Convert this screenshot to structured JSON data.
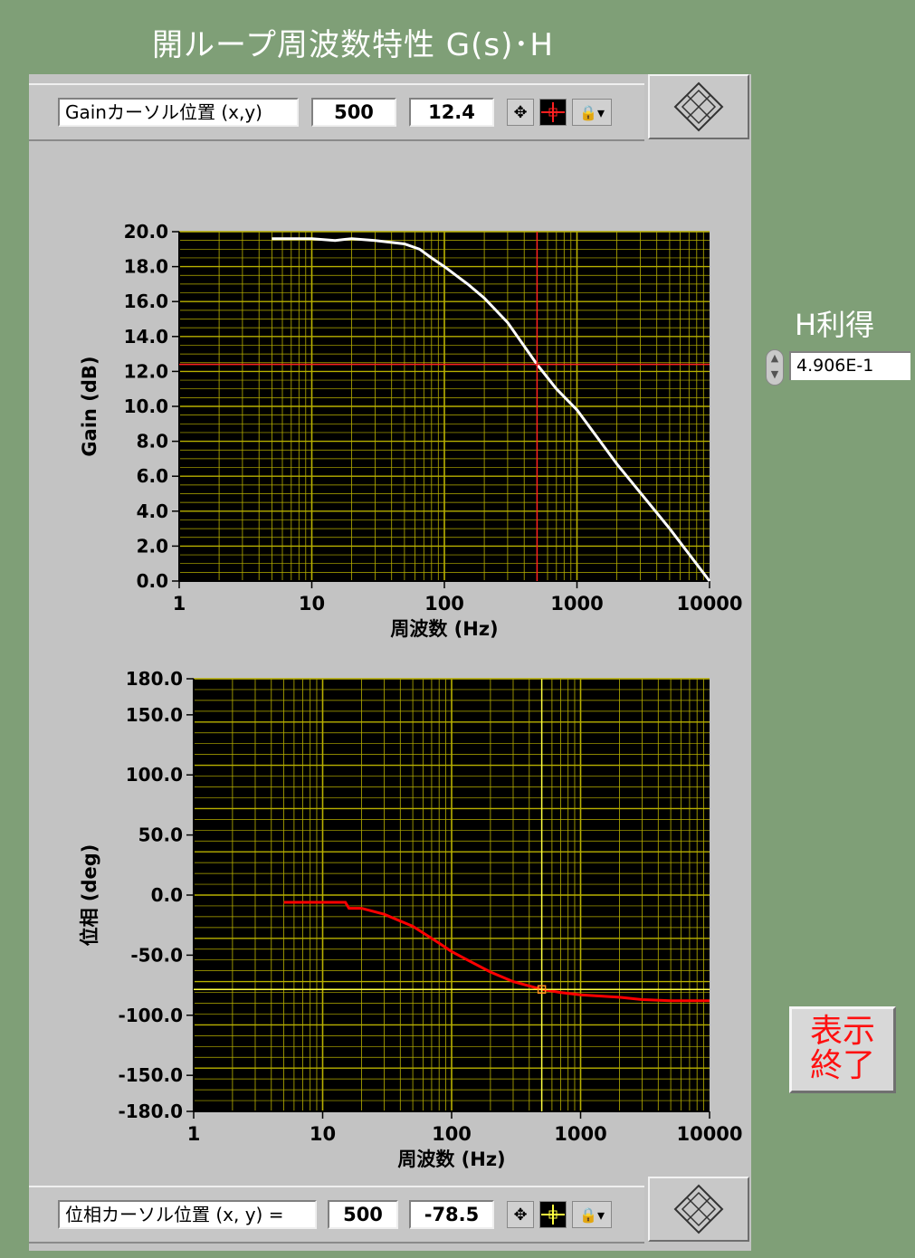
{
  "title": "開ループ周波数特性 G(s)･H",
  "gain_cursor": {
    "label": "Gainカーソル位置 (x,y)",
    "x": "500",
    "y": "12.4"
  },
  "phase_cursor": {
    "label": "位相カーソル位置 (x, y) =",
    "x": "500",
    "y": "-78.5"
  },
  "h_gain": {
    "label": "H利得",
    "value": "4.906E-1"
  },
  "end_button": {
    "line1": "表示",
    "line2": "終了"
  },
  "colors": {
    "plot_bg": "#000000",
    "grid": "#b8b000",
    "gain_trace": "#ffffff",
    "phase_trace": "#ff0000",
    "gain_cursor": "#ff2020",
    "phase_cursor": "#ffff40"
  },
  "chart_data": [
    {
      "type": "line",
      "xscale": "log",
      "xlabel": "周波数 (Hz)",
      "ylabel": "Gain (dB)",
      "xlim": [
        1,
        10000
      ],
      "ylim": [
        0,
        20
      ],
      "x_ticks": [
        "1",
        "10",
        "100",
        "1000",
        "10000"
      ],
      "y_ticks": [
        "20.0",
        "18.0",
        "16.0",
        "14.0",
        "12.0",
        "10.0",
        "8.0",
        "6.0",
        "4.0",
        "2.0",
        "0.0"
      ],
      "cursor": {
        "x": 500,
        "y": 12.4
      },
      "x": [
        5,
        10,
        15,
        20,
        30,
        50,
        65,
        80,
        100,
        150,
        200,
        300,
        500,
        700,
        1000,
        2000,
        5000,
        10000
      ],
      "y": [
        19.6,
        19.6,
        19.5,
        19.6,
        19.5,
        19.3,
        19.0,
        18.5,
        18.0,
        17.0,
        16.2,
        14.8,
        12.4,
        11.0,
        9.8,
        6.7,
        3.0,
        0.0
      ],
      "grid": true
    },
    {
      "type": "line",
      "xscale": "log",
      "xlabel": "周波数 (Hz)",
      "ylabel": "位相 (deg)",
      "xlim": [
        1,
        10000
      ],
      "ylim": [
        -180,
        180
      ],
      "x_ticks": [
        "1",
        "10",
        "100",
        "1000",
        "10000"
      ],
      "y_ticks": [
        "180.0",
        "150.0",
        "100.0",
        "50.0",
        "0.0",
        "-50.0",
        "-100.0",
        "-150.0",
        "-180.0"
      ],
      "cursor": {
        "x": 500,
        "y": -78.5
      },
      "x": [
        5,
        10,
        15,
        16,
        20,
        30,
        50,
        80,
        100,
        150,
        200,
        300,
        500,
        700,
        1000,
        2000,
        3000,
        5000,
        10000
      ],
      "y": [
        -6,
        -6,
        -6,
        -11,
        -11,
        -16,
        -26,
        -40,
        -47,
        -57,
        -64,
        -72,
        -78.5,
        -81,
        -83,
        -85,
        -87,
        -88,
        -88
      ],
      "grid": true
    }
  ]
}
